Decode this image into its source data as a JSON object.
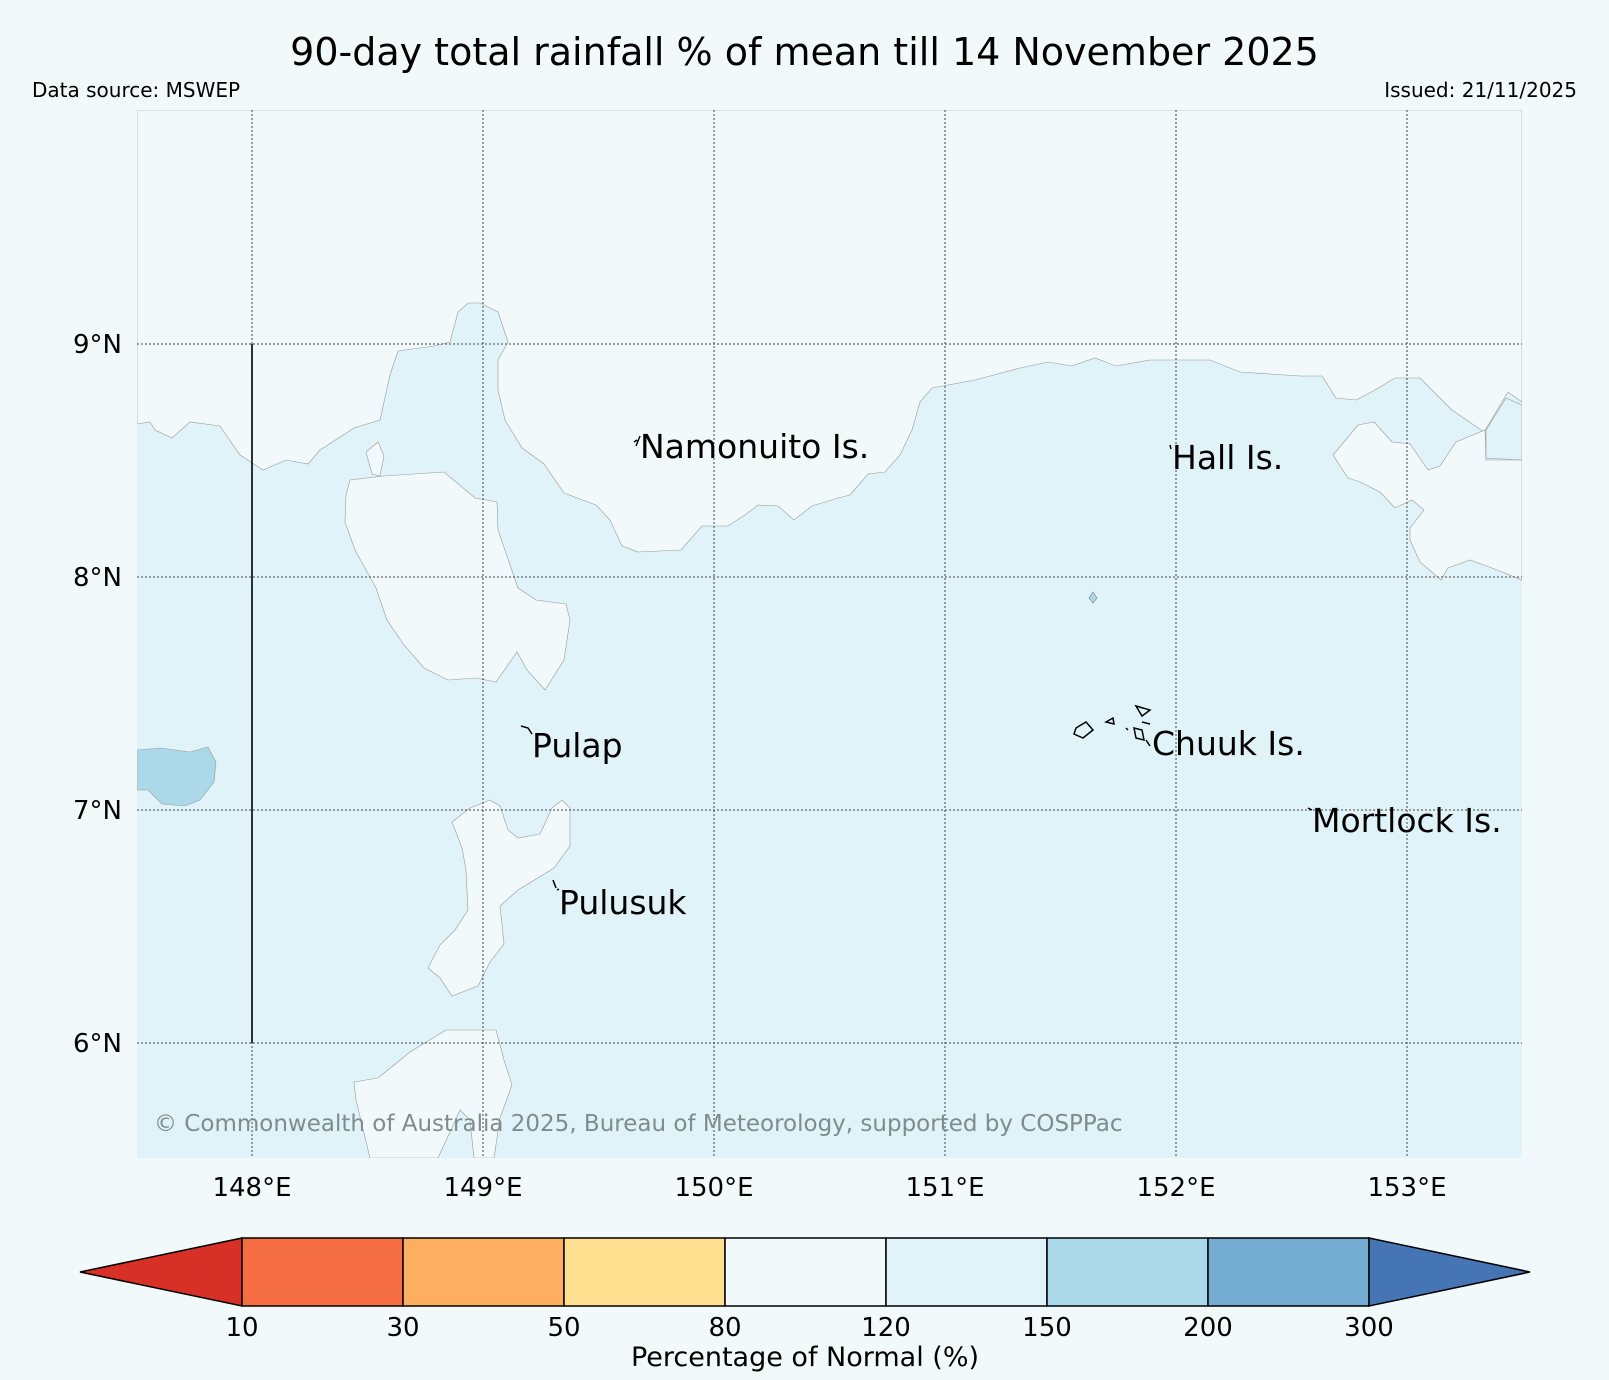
{
  "header": {
    "title": "90-day total rainfall % of mean till 14 November 2025",
    "data_source": "Data source: MSWEP",
    "issued": "Issued: 21/11/2025"
  },
  "map": {
    "lat_labels": [
      "9°N",
      "8°N",
      "7°N",
      "6°N"
    ],
    "lon_labels": [
      "148°E",
      "149°E",
      "150°E",
      "151°E",
      "152°E",
      "153°E"
    ],
    "places": [
      "Namonuito Is.",
      "Hall Is.",
      "Pulap",
      "Chuuk Is.",
      "Mortlock Is.",
      "Pulusuk"
    ],
    "copyright": "© Commonwealth of Australia 2025, Bureau of Meteorology, supported by COSPPac"
  },
  "legend": {
    "title": "Percentage of Normal (%)",
    "ticks": [
      "10",
      "30",
      "50",
      "80",
      "120",
      "150",
      "200",
      "300"
    ],
    "colors": [
      "#d73027",
      "#f46d43",
      "#fdae61",
      "#fee090",
      "#f2f9fb",
      "#e0f3f8",
      "#abd9e9",
      "#74add1",
      "#4575b4"
    ]
  }
}
